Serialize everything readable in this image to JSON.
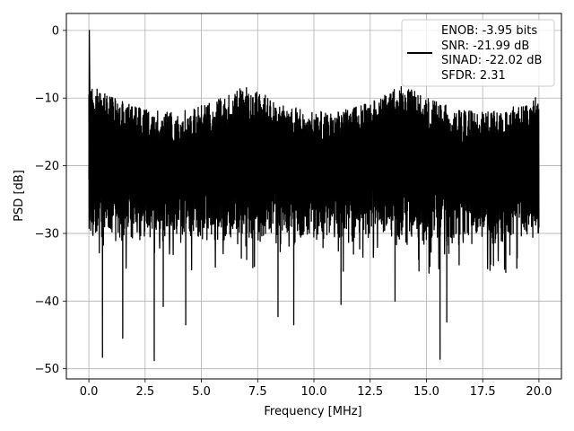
{
  "chart_data": {
    "type": "line",
    "xlabel": "Frequency [MHz]",
    "ylabel": "PSD [dB]",
    "xlim": [
      -1.0,
      21.0
    ],
    "ylim": [
      -51.5,
      2.5
    ],
    "x_ticks": [
      0.0,
      2.5,
      5.0,
      7.5,
      10.0,
      12.5,
      15.0,
      17.5,
      20.0
    ],
    "x_tick_labels": [
      "0.0",
      "2.5",
      "5.0",
      "7.5",
      "10.0",
      "12.5",
      "15.0",
      "17.5",
      "20.0"
    ],
    "y_ticks": [
      0,
      -10,
      -20,
      -30,
      -40,
      -50
    ],
    "y_tick_labels": [
      "0",
      "−10",
      "−20",
      "−30",
      "−40",
      "−50"
    ],
    "grid": true,
    "legend_position": "top-right",
    "legend_lines": [
      "ENOB: -3.95 bits",
      "SNR: -21.99 dB",
      "SINAD: -22.02 dB",
      "SFDR: 2.31"
    ],
    "series": [
      {
        "color": "#000000",
        "x_range": [
          0.0,
          20.0
        ],
        "peak": {
          "x": 0.02,
          "y": 0
        },
        "band_upper": [
          -8,
          -12
        ],
        "band_lower": [
          -26,
          -32
        ],
        "typical_center": -18,
        "deep_nulls": [
          {
            "x": 0.6,
            "y": -48.3
          },
          {
            "x": 1.5,
            "y": -45.5
          },
          {
            "x": 2.9,
            "y": -48.8
          },
          {
            "x": 3.3,
            "y": -40.8
          },
          {
            "x": 4.3,
            "y": -43.5
          },
          {
            "x": 8.4,
            "y": -42.3
          },
          {
            "x": 9.1,
            "y": -43.5
          },
          {
            "x": 11.2,
            "y": -40.5
          },
          {
            "x": 13.6,
            "y": -40.0
          },
          {
            "x": 15.6,
            "y": -48.6
          },
          {
            "x": 15.9,
            "y": -43.1
          }
        ]
      }
    ]
  }
}
